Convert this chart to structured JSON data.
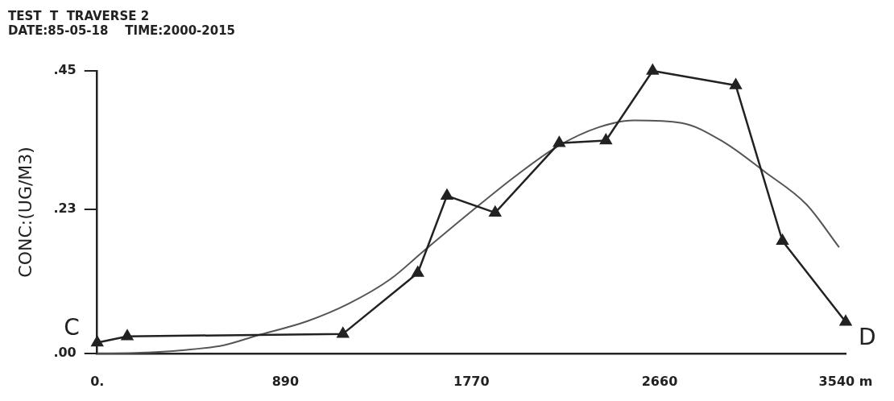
{
  "chart_data": {
    "type": "line",
    "title": "TEST  T  TRAVERSE 2",
    "subtitle": "DATE:85-05-18    TIME:2000-2015",
    "ylabel": "CONC:(UG/M3)",
    "xlim": [
      0,
      3540
    ],
    "xticks": [
      {
        "value": 0,
        "label": "0."
      },
      890,
      1770,
      2660,
      {
        "value": 3540,
        "label": "3540 m"
      }
    ],
    "ylim": [
      0,
      0.45
    ],
    "yticks": [
      {
        "value": 0,
        "label": ".00"
      },
      {
        "value": 0.23,
        "label": ".23"
      },
      {
        "value": 0.45,
        "label": ".45"
      }
    ],
    "grid": false,
    "legend": false,
    "line_style": "solid",
    "series": [
      {
        "color": "#222222",
        "marker": "triangle",
        "x": [
          0,
          142,
          1162,
          1516,
          1654,
          1882,
          2185,
          2406,
          2627,
          3020,
          3241,
          3540
        ],
        "values": [
          0.017,
          0.027,
          0.031,
          0.128,
          0.251,
          0.224,
          0.335,
          0.339,
          0.45,
          0.427,
          0.179,
          0.05
        ]
      },
      {
        "color": "#555555",
        "marker": "none",
        "x": [
          0,
          205,
          402,
          599,
          752,
          992,
          1189,
          1386,
          1544,
          1780,
          1977,
          2174,
          2371,
          2540,
          2764,
          2961,
          3158,
          3355,
          3509
        ],
        "values": [
          0,
          0.001,
          0.005,
          0.013,
          0.028,
          0.051,
          0.079,
          0.118,
          0.163,
          0.229,
          0.282,
          0.329,
          0.36,
          0.371,
          0.367,
          0.337,
          0.289,
          0.237,
          0.169
        ]
      }
    ],
    "annotations": [
      "C",
      "D"
    ]
  }
}
